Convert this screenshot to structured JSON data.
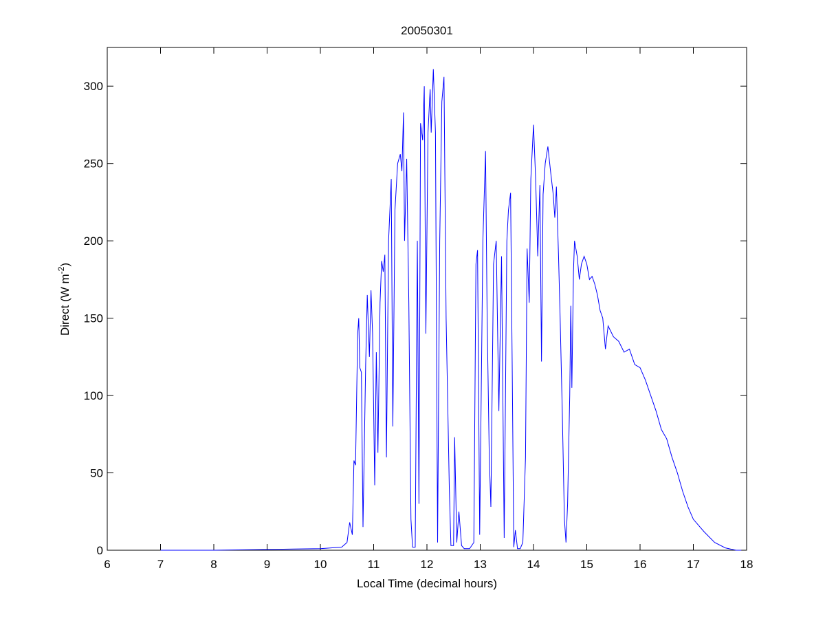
{
  "chart_data": {
    "type": "line",
    "title": "20050301",
    "xlabel": "Local Time (decimal hours)",
    "ylabel_parts": [
      "Direct (W m",
      "-2",
      ")"
    ],
    "x": [
      7,
      8,
      9,
      9.5,
      10,
      10.4,
      10.5,
      10.55,
      10.6,
      10.63,
      10.66,
      10.7,
      10.72,
      10.74,
      10.77,
      10.8,
      10.85,
      10.88,
      10.92,
      10.95,
      10.98,
      11.02,
      11.05,
      11.08,
      11.12,
      11.15,
      11.18,
      11.21,
      11.24,
      11.28,
      11.33,
      11.36,
      11.4,
      11.45,
      11.5,
      11.53,
      11.56,
      11.58,
      11.62,
      11.66,
      11.7,
      11.73,
      11.78,
      11.82,
      11.85,
      11.88,
      11.92,
      11.95,
      11.98,
      12.02,
      12.06,
      12.08,
      12.12,
      12.16,
      12.2,
      12.24,
      12.28,
      12.32,
      12.36,
      12.42,
      12.45,
      12.5,
      12.52,
      12.56,
      12.6,
      12.65,
      12.7,
      12.8,
      12.88,
      12.92,
      12.95,
      12.99,
      13.05,
      13.1,
      13.13,
      13.17,
      13.2,
      13.25,
      13.3,
      13.35,
      13.4,
      13.45,
      13.5,
      13.53,
      13.57,
      13.6,
      13.63,
      13.66,
      13.7,
      13.75,
      13.8,
      13.85,
      13.88,
      13.92,
      13.95,
      14.0,
      14.04,
      14.08,
      14.12,
      14.15,
      14.18,
      14.22,
      14.27,
      14.32,
      14.37,
      14.4,
      14.43,
      14.47,
      14.5,
      14.54,
      14.58,
      14.61,
      14.64,
      14.68,
      14.7,
      14.72,
      14.75,
      14.77,
      14.82,
      14.86,
      14.9,
      14.95,
      15.0,
      15.05,
      15.1,
      15.15,
      15.2,
      15.25,
      15.3,
      15.35,
      15.4,
      15.5,
      15.6,
      15.7,
      15.8,
      15.9,
      16.0,
      16.1,
      16.2,
      16.3,
      16.4,
      16.5,
      16.6,
      16.7,
      16.8,
      16.9,
      17.0,
      17.2,
      17.4,
      17.6,
      17.8,
      17.9
    ],
    "values": [
      0,
      0,
      0.5,
      0.8,
      1,
      2,
      5,
      18,
      10,
      58,
      55,
      140,
      150,
      118,
      115,
      15,
      120,
      165,
      125,
      168,
      140,
      42,
      128,
      63,
      160,
      187,
      180,
      191,
      60,
      200,
      240,
      80,
      220,
      250,
      256,
      245,
      283,
      200,
      253,
      160,
      20,
      2,
      2,
      200,
      30,
      276,
      265,
      300,
      140,
      270,
      298,
      270,
      311,
      270,
      5,
      200,
      290,
      306,
      150,
      40,
      3,
      3,
      73,
      5,
      25,
      3,
      1,
      1,
      5,
      185,
      194,
      10,
      200,
      258,
      150,
      60,
      28,
      185,
      200,
      90,
      190,
      8,
      200,
      220,
      231,
      120,
      2,
      13,
      1,
      1,
      5,
      60,
      195,
      160,
      240,
      275,
      240,
      190,
      236,
      122,
      230,
      250,
      261,
      245,
      230,
      215,
      235,
      190,
      150,
      90,
      20,
      5,
      30,
      100,
      158,
      105,
      180,
      200,
      190,
      175,
      185,
      190,
      185,
      175,
      177,
      172,
      165,
      155,
      150,
      130,
      145,
      138,
      135,
      128,
      130,
      120,
      118,
      110,
      100,
      90,
      78,
      72,
      60,
      50,
      38,
      28,
      20,
      12,
      5,
      1.5,
      0,
      0
    ],
    "color": "#0000ff",
    "xlim": [
      6,
      18
    ],
    "xticks": [
      6,
      7,
      8,
      9,
      10,
      11,
      12,
      13,
      14,
      15,
      16,
      17,
      18
    ],
    "ylim": [
      0,
      325
    ],
    "yticks": [
      0,
      50,
      100,
      150,
      200,
      250,
      300
    ]
  }
}
